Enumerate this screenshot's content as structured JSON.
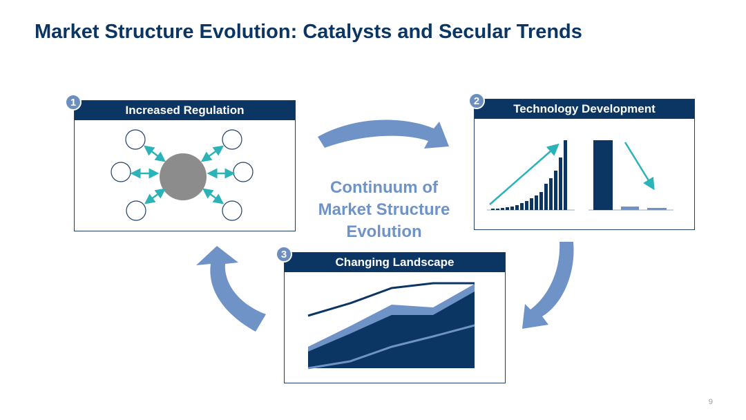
{
  "title": "Market Structure Evolution: Catalysts and Secular Trends",
  "center": {
    "line1": "Continuum of",
    "line2": "Market Structure",
    "line3": "Evolution"
  },
  "panels": [
    {
      "number": "1",
      "label": "Increased Regulation"
    },
    {
      "number": "2",
      "label": "Technology Development"
    },
    {
      "number": "3",
      "label": "Changing Landscape"
    }
  ],
  "page_number": "9",
  "colors": {
    "navy": "#0b3563",
    "arrow_blue": "#6f93c6",
    "teal": "#2bb3b8",
    "gray_circle": "#8c8c8c"
  },
  "icons": [
    "cycle-arrow-icon",
    "teal-double-arrow-icon",
    "trend-arrow-icon"
  ]
}
